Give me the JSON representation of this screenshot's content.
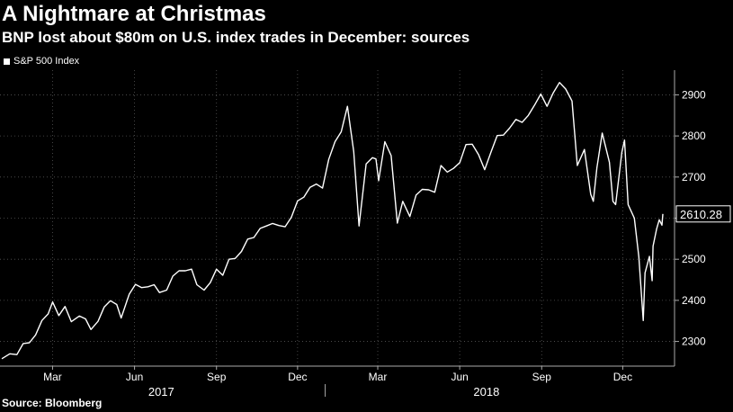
{
  "title": "A Nightmare at Christmas",
  "subtitle": "BNP lost about $80m on U.S. index trades in December: sources",
  "source": "Source: Bloomberg",
  "colors": {
    "background": "#000000",
    "line": "#ffffff",
    "grid": "#555555",
    "axis": "#aaaaaa"
  },
  "chart_data": {
    "type": "line",
    "title": "A Nightmare at Christmas",
    "subtitle": "BNP lost about $80m on U.S. index trades in December: sources",
    "xlabel": "",
    "ylabel": "",
    "grid": true,
    "legend_position": "top-left",
    "y_axis_side": "right",
    "ylim": [
      2240,
      2960
    ],
    "yticks": [
      2300,
      2400,
      2500,
      2600,
      2700,
      2800,
      2900
    ],
    "xlim": [
      "2017-01-03",
      "2019-01-15"
    ],
    "x_month_ticks": [
      {
        "date": "2017-03-01",
        "label": "Mar"
      },
      {
        "date": "2017-06-01",
        "label": "Jun"
      },
      {
        "date": "2017-09-01",
        "label": "Sep"
      },
      {
        "date": "2017-12-01",
        "label": "Dec"
      },
      {
        "date": "2018-03-01",
        "label": "Mar"
      },
      {
        "date": "2018-06-01",
        "label": "Jun"
      },
      {
        "date": "2018-09-01",
        "label": "Sep"
      },
      {
        "date": "2018-12-01",
        "label": "Dec"
      }
    ],
    "x_year_labels": [
      {
        "date": "2017-07-01",
        "label": "2017"
      },
      {
        "date": "2018-07-01",
        "label": "2018"
      }
    ],
    "x_year_dividers": [
      "2018-01-01"
    ],
    "last_value_label": "2610.28",
    "series": [
      {
        "name": "S&P 500 Index",
        "points": [
          [
            "2017-01-03",
            2258
          ],
          [
            "2017-01-12",
            2270
          ],
          [
            "2017-01-20",
            2268
          ],
          [
            "2017-01-27",
            2295
          ],
          [
            "2017-02-03",
            2297
          ],
          [
            "2017-02-10",
            2316
          ],
          [
            "2017-02-17",
            2351
          ],
          [
            "2017-02-24",
            2367
          ],
          [
            "2017-03-01",
            2396
          ],
          [
            "2017-03-08",
            2363
          ],
          [
            "2017-03-15",
            2385
          ],
          [
            "2017-03-22",
            2348
          ],
          [
            "2017-03-31",
            2362
          ],
          [
            "2017-04-07",
            2355
          ],
          [
            "2017-04-13",
            2329
          ],
          [
            "2017-04-21",
            2349
          ],
          [
            "2017-04-28",
            2384
          ],
          [
            "2017-05-05",
            2399
          ],
          [
            "2017-05-12",
            2390
          ],
          [
            "2017-05-17",
            2357
          ],
          [
            "2017-05-26",
            2415
          ],
          [
            "2017-06-02",
            2439
          ],
          [
            "2017-06-09",
            2431
          ],
          [
            "2017-06-16",
            2433
          ],
          [
            "2017-06-23",
            2438
          ],
          [
            "2017-06-29",
            2419
          ],
          [
            "2017-07-07",
            2425
          ],
          [
            "2017-07-14",
            2459
          ],
          [
            "2017-07-21",
            2472
          ],
          [
            "2017-07-28",
            2472
          ],
          [
            "2017-08-04",
            2476
          ],
          [
            "2017-08-10",
            2438
          ],
          [
            "2017-08-18",
            2425
          ],
          [
            "2017-08-25",
            2443
          ],
          [
            "2017-09-01",
            2476
          ],
          [
            "2017-09-08",
            2461
          ],
          [
            "2017-09-15",
            2500
          ],
          [
            "2017-09-22",
            2502
          ],
          [
            "2017-09-29",
            2519
          ],
          [
            "2017-10-06",
            2549
          ],
          [
            "2017-10-13",
            2553
          ],
          [
            "2017-10-20",
            2575
          ],
          [
            "2017-10-27",
            2581
          ],
          [
            "2017-11-03",
            2587
          ],
          [
            "2017-11-10",
            2582
          ],
          [
            "2017-11-17",
            2579
          ],
          [
            "2017-11-24",
            2602
          ],
          [
            "2017-12-01",
            2642
          ],
          [
            "2017-12-08",
            2651
          ],
          [
            "2017-12-15",
            2675
          ],
          [
            "2017-12-22",
            2683
          ],
          [
            "2017-12-29",
            2673
          ],
          [
            "2018-01-05",
            2743
          ],
          [
            "2018-01-12",
            2786
          ],
          [
            "2018-01-19",
            2810
          ],
          [
            "2018-01-26",
            2872
          ],
          [
            "2018-02-02",
            2762
          ],
          [
            "2018-02-08",
            2581
          ],
          [
            "2018-02-16",
            2732
          ],
          [
            "2018-02-23",
            2747
          ],
          [
            "2018-02-27",
            2744
          ],
          [
            "2018-03-02",
            2691
          ],
          [
            "2018-03-09",
            2786
          ],
          [
            "2018-03-16",
            2752
          ],
          [
            "2018-03-23",
            2588
          ],
          [
            "2018-03-29",
            2641
          ],
          [
            "2018-04-06",
            2604
          ],
          [
            "2018-04-13",
            2656
          ],
          [
            "2018-04-20",
            2670
          ],
          [
            "2018-04-27",
            2669
          ],
          [
            "2018-05-04",
            2663
          ],
          [
            "2018-05-11",
            2728
          ],
          [
            "2018-05-18",
            2712
          ],
          [
            "2018-05-25",
            2721
          ],
          [
            "2018-06-01",
            2735
          ],
          [
            "2018-06-08",
            2779
          ],
          [
            "2018-06-15",
            2780
          ],
          [
            "2018-06-22",
            2755
          ],
          [
            "2018-06-29",
            2718
          ],
          [
            "2018-07-06",
            2760
          ],
          [
            "2018-07-13",
            2801
          ],
          [
            "2018-07-20",
            2802
          ],
          [
            "2018-07-27",
            2819
          ],
          [
            "2018-08-03",
            2840
          ],
          [
            "2018-08-10",
            2833
          ],
          [
            "2018-08-17",
            2850
          ],
          [
            "2018-08-24",
            2875
          ],
          [
            "2018-08-31",
            2902
          ],
          [
            "2018-09-07",
            2872
          ],
          [
            "2018-09-14",
            2905
          ],
          [
            "2018-09-21",
            2930
          ],
          [
            "2018-09-28",
            2914
          ],
          [
            "2018-10-05",
            2885
          ],
          [
            "2018-10-11",
            2728
          ],
          [
            "2018-10-19",
            2767
          ],
          [
            "2018-10-26",
            2658
          ],
          [
            "2018-10-29",
            2641
          ],
          [
            "2018-11-02",
            2723
          ],
          [
            "2018-11-08",
            2807
          ],
          [
            "2018-11-16",
            2736
          ],
          [
            "2018-11-20",
            2641
          ],
          [
            "2018-11-23",
            2633
          ],
          [
            "2018-11-30",
            2760
          ],
          [
            "2018-12-03",
            2790
          ],
          [
            "2018-12-07",
            2633
          ],
          [
            "2018-12-14",
            2600
          ],
          [
            "2018-12-19",
            2506
          ],
          [
            "2018-12-24",
            2351
          ],
          [
            "2018-12-26",
            2467
          ],
          [
            "2018-12-31",
            2507
          ],
          [
            "2019-01-03",
            2448
          ],
          [
            "2019-01-04",
            2532
          ],
          [
            "2019-01-08",
            2574
          ],
          [
            "2019-01-11",
            2596
          ],
          [
            "2019-01-14",
            2583
          ],
          [
            "2019-01-15",
            2610.28
          ]
        ]
      }
    ]
  }
}
